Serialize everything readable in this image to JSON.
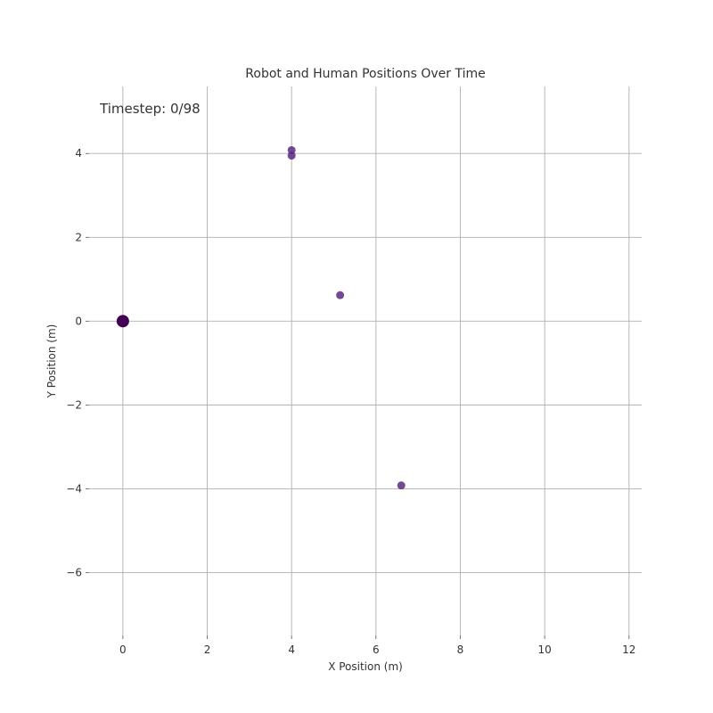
{
  "chart_data": {
    "type": "scatter",
    "title": "Robot and Human Positions Over Time",
    "xlabel": "X Position (m)",
    "ylabel": "Y Position (m)",
    "annotation": "Timestep: 0/98",
    "xlim": [
      -0.8,
      12.3
    ],
    "ylim": [
      -7.5,
      5.6
    ],
    "xticks": [
      0,
      2,
      4,
      6,
      8,
      10,
      12
    ],
    "yticks": [
      -6,
      -4,
      -2,
      0,
      2,
      4
    ],
    "grid": true,
    "robot": {
      "x": 0,
      "y": 0,
      "color": "#440154"
    },
    "humans": {
      "color": "#5b2a7e",
      "points": [
        {
          "x": 4.0,
          "y": 4.08
        },
        {
          "x": 4.0,
          "y": 3.95
        },
        {
          "x": 5.15,
          "y": 0.62
        },
        {
          "x": 6.6,
          "y": -3.92
        }
      ]
    }
  }
}
